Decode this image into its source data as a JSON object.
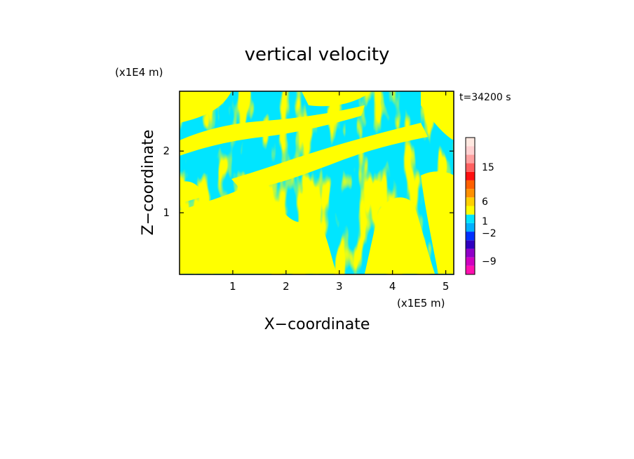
{
  "chart_data": {
    "type": "heatmap",
    "title": "vertical velocity",
    "xlabel": "X−coordinate",
    "ylabel": "Z−coordinate",
    "x_unit": "(x1E5 m)",
    "y_unit": "(x1E4 m)",
    "time_label": "t=34200 s",
    "xlim": [
      0,
      5.15
    ],
    "ylim": [
      0,
      2.97
    ],
    "x_ticks": [
      1,
      2,
      3,
      4,
      5
    ],
    "x_tick_labels": [
      "1",
      "2",
      "3",
      "4",
      "5"
    ],
    "y_ticks": [
      1,
      2
    ],
    "y_tick_labels": [
      "1",
      "2"
    ],
    "field_colors": {
      "positive": "#ffff00",
      "negative": "#00e5ff"
    },
    "colorbar": {
      "levels": [
        {
          "value": -12,
          "color": "#ff10b0"
        },
        {
          "value": -9,
          "color": "#d000c0"
        },
        {
          "value": -6,
          "color": "#9000c8"
        },
        {
          "value": -3,
          "color": "#3000c0"
        },
        {
          "value": -2,
          "color": "#0030ff"
        },
        {
          "value": -1,
          "color": "#00b0ff"
        },
        {
          "value": 0,
          "color": "#00e5ff"
        },
        {
          "value": 0.5,
          "color": "#ffff00"
        },
        {
          "value": 1,
          "color": "#ffd000"
        },
        {
          "value": 2,
          "color": "#ff9000"
        },
        {
          "value": 6,
          "color": "#ff6000"
        },
        {
          "value": 9,
          "color": "#ff1010"
        },
        {
          "value": 12,
          "color": "#ff6060"
        },
        {
          "value": 15,
          "color": "#ffa0a0"
        },
        {
          "value": 20,
          "color": "#ffd0d0"
        },
        {
          "value": 25,
          "color": "#ffe8e0"
        }
      ],
      "labels": [
        "15",
        "6",
        "1",
        "−2",
        "−9"
      ]
    }
  }
}
